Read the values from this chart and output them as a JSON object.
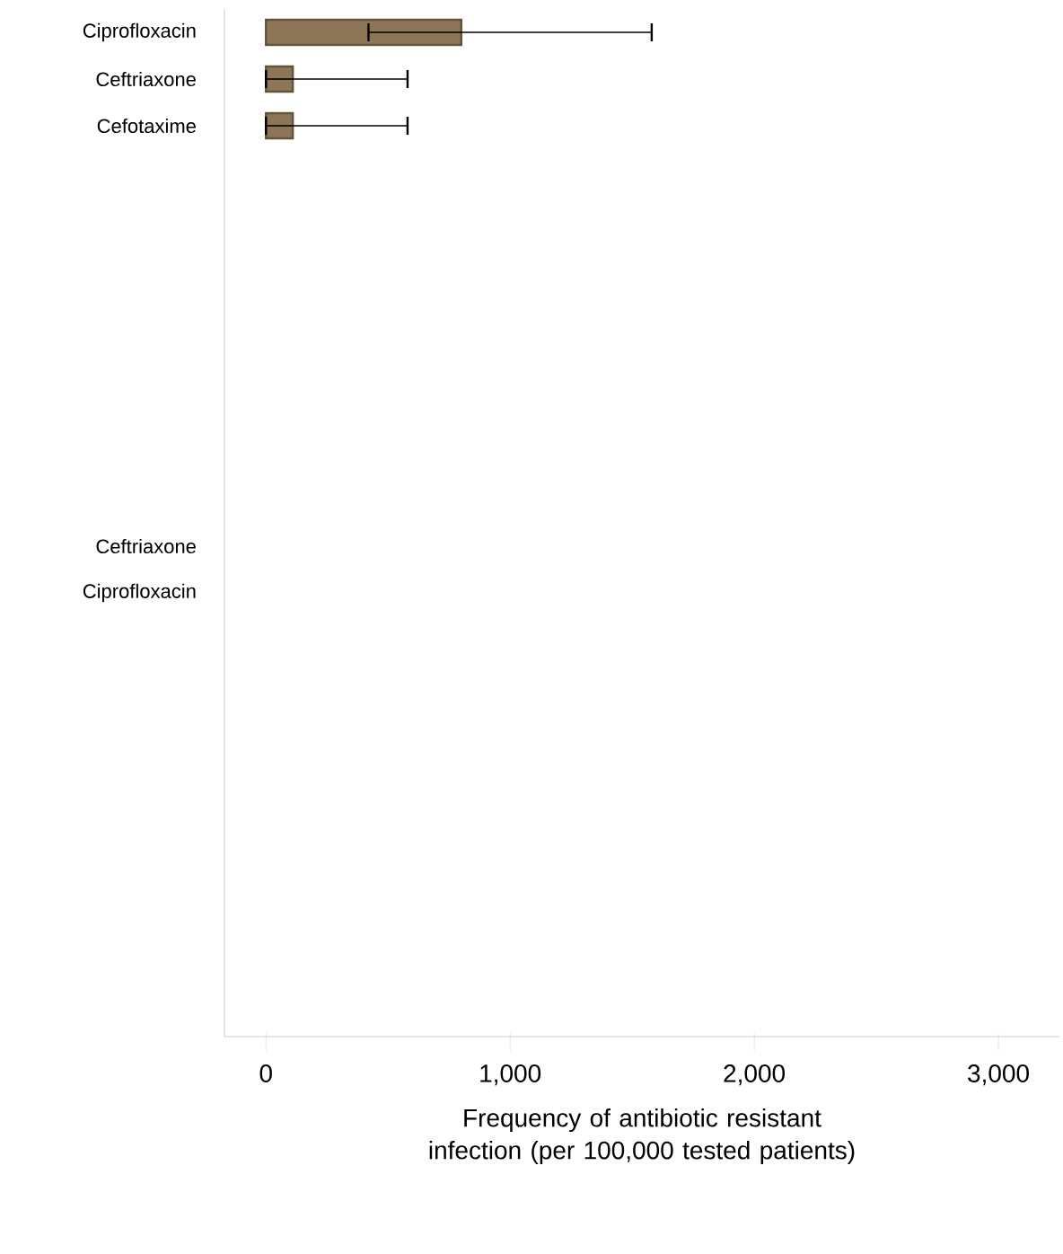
{
  "chart_data": {
    "type": "bar",
    "orientation": "horizontal",
    "xlabel": "Frequency of antibiotic resistant infection (per 100,000 tested patients)",
    "categories": [
      "Ciprofloxacin",
      "Ceftriaxone",
      "Cefotaxime",
      null,
      null,
      null,
      null,
      null,
      null,
      null,
      null,
      "Ceftriaxone",
      "Ciprofloxacin",
      null,
      null,
      null,
      null,
      null,
      null,
      null,
      null,
      null
    ],
    "values": [
      800,
      110,
      110,
      null,
      null,
      null,
      null,
      null,
      null,
      null,
      null,
      null,
      null,
      null,
      null,
      null,
      null,
      null,
      null,
      null,
      null,
      null
    ],
    "errors": [
      [
        420,
        1580
      ],
      [
        0,
        580
      ],
      [
        0,
        580
      ],
      null,
      null,
      null,
      null,
      null,
      null,
      null,
      null,
      null,
      null,
      null,
      null,
      null,
      null,
      null,
      null,
      null,
      null,
      null
    ],
    "color": "#8c7657",
    "xlim": [
      -170,
      3250
    ],
    "xticks": [
      {
        "value": 0,
        "label": "0"
      },
      {
        "value": 1000,
        "label": "1,000"
      },
      {
        "value": 2000,
        "label": "2,000"
      },
      {
        "value": 3000,
        "label": "3,000"
      }
    ],
    "grid": false
  }
}
